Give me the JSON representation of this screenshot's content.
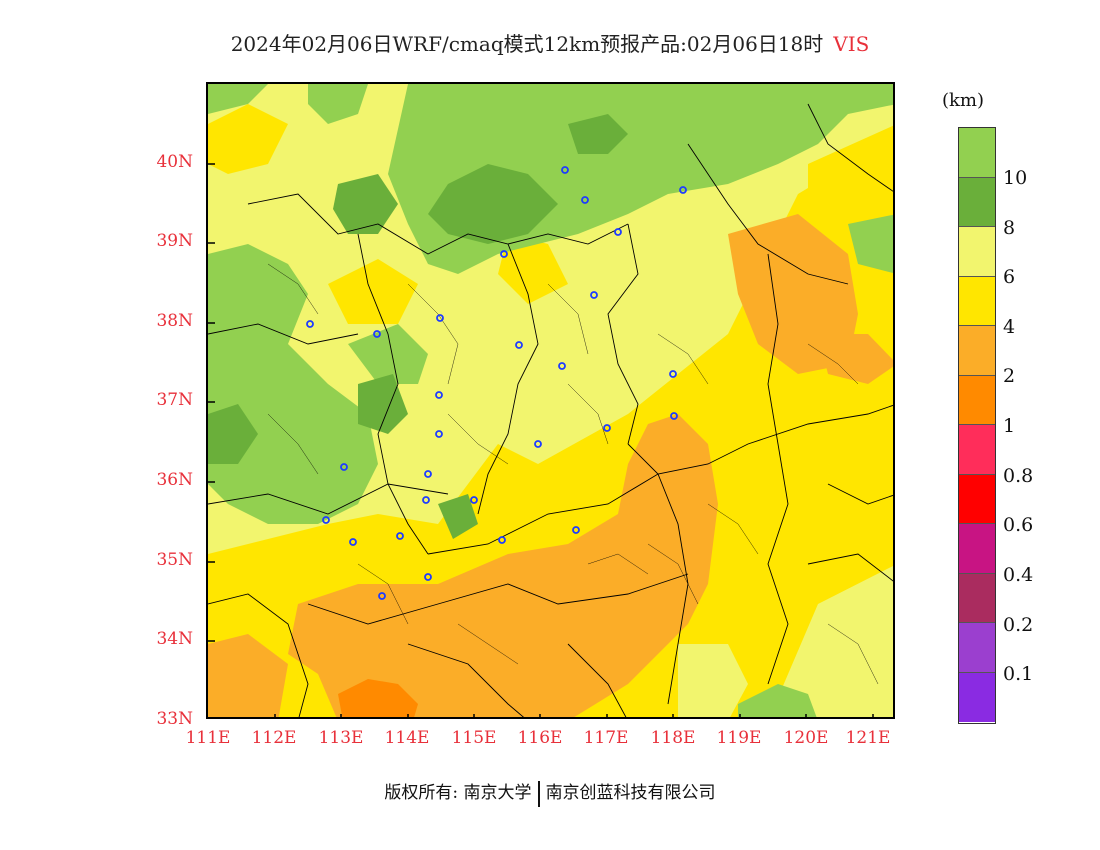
{
  "title": {
    "main": "2024年02月06日WRF/cmaq模式12km预报产品:02月06日18时",
    "variable": "VIS"
  },
  "axes": {
    "lat_labels": [
      "40N",
      "39N",
      "38N",
      "37N",
      "36N",
      "35N",
      "34N",
      "33N"
    ],
    "lon_labels": [
      "111E",
      "112E",
      "113E",
      "114E",
      "115E",
      "116E",
      "117E",
      "118E",
      "119E",
      "120E",
      "121E"
    ]
  },
  "colorbar": {
    "unit": "(km)",
    "labels": [
      "10",
      "8",
      "6",
      "4",
      "2",
      "1",
      "0.8",
      "0.6",
      "0.4",
      "0.2",
      "0.1"
    ],
    "colors": [
      "#92d050",
      "#6aaf3a",
      "#f2f56e",
      "#ffe600",
      "#fbad28",
      "#ff8a00",
      "#ff2d5a",
      "#ff0000",
      "#c81483",
      "#aa2c5f",
      "#9b3fcf",
      "#8a2be2"
    ]
  },
  "footer": {
    "copyright": "版权所有: 南京大学",
    "company": "南京创蓝科技有限公司"
  }
}
